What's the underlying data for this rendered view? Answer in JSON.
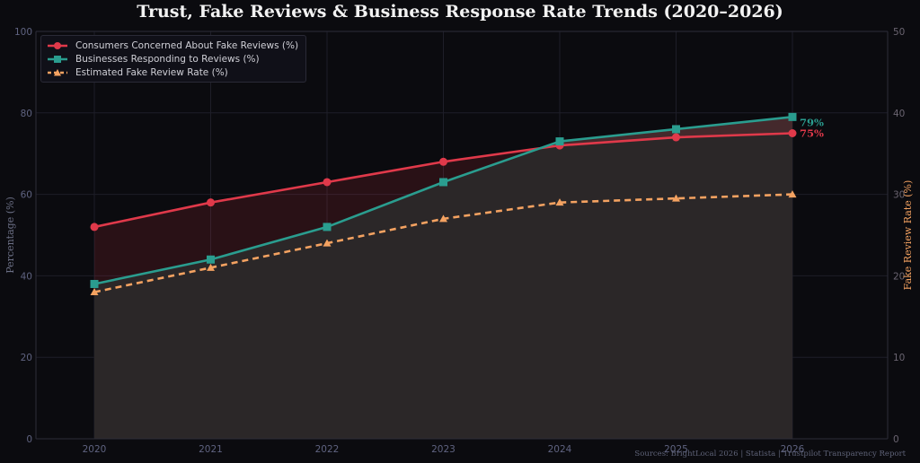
{
  "chart_data": {
    "type": "line",
    "title": "Trust, Fake Reviews & Business Response Rate Trends (2020–2026)",
    "x": [
      "2020",
      "2021",
      "2022",
      "2023",
      "2024",
      "2025",
      "2026"
    ],
    "ylabel": "Percentage (%)",
    "y2label": "Fake Review Rate (%)",
    "ylim": [
      0,
      100
    ],
    "y2lim": [
      0,
      50
    ],
    "yticks": [
      0,
      20,
      40,
      60,
      80,
      100
    ],
    "y2ticks": [
      0,
      10,
      20,
      30,
      40,
      50
    ],
    "grid": true,
    "legend_position": "top-left",
    "series": [
      {
        "name": "Consumers Concerned About Fake Reviews (%)",
        "axis": "left",
        "marker": "circle",
        "style": "solid",
        "color": "#e0394a",
        "values": [
          52,
          58,
          63,
          68,
          72,
          74,
          75
        ]
      },
      {
        "name": "Businesses Responding to Reviews (%)",
        "axis": "left",
        "marker": "square",
        "style": "solid",
        "color": "#2a9d8f",
        "values": [
          38,
          44,
          52,
          63,
          73,
          76,
          79
        ]
      },
      {
        "name": "Estimated Fake Review Rate (%)",
        "axis": "right",
        "marker": "triangle",
        "style": "dashed",
        "color": "#f4a261",
        "values": [
          18,
          21,
          24,
          27,
          29,
          29.5,
          30
        ]
      }
    ],
    "annotations": [
      {
        "text": "75%",
        "series": 0,
        "color": "#e0394a"
      },
      {
        "text": "79%",
        "series": 1,
        "color": "#2a9d8f"
      }
    ],
    "source": "Sources: BrightLocal 2026 | Statista | Trustpilot Transparency Report"
  }
}
